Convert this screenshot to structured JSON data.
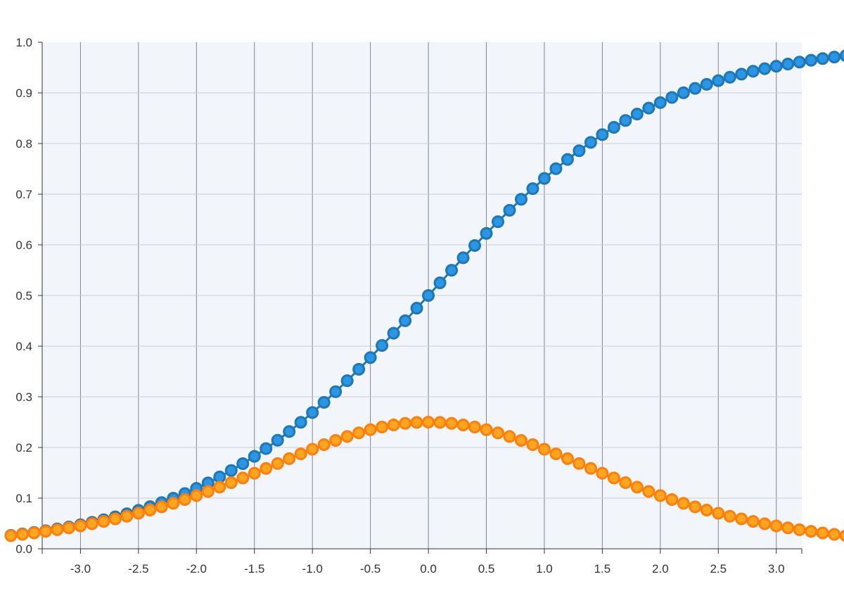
{
  "chart_data": {
    "type": "line",
    "title": "",
    "xlabel": "",
    "ylabel": "",
    "xlim": [
      -3.33,
      3.22
    ],
    "ylim": [
      0.0,
      1.0
    ],
    "x_ticks": [
      "-3.0",
      "-2.5",
      "-2.0",
      "-1.5",
      "-1.0",
      "-0.5",
      "0.0",
      "0.5",
      "1.0",
      "1.5",
      "2.0",
      "2.5",
      "3.0"
    ],
    "x_tick_values": [
      -3.0,
      -2.5,
      -2.0,
      -1.5,
      -1.0,
      -0.5,
      0.0,
      0.5,
      1.0,
      1.5,
      2.0,
      2.5,
      3.0
    ],
    "y_ticks": [
      "0.0",
      "0.1",
      "0.2",
      "0.3",
      "0.4",
      "0.5",
      "0.6",
      "0.7",
      "0.8",
      "0.9",
      "1.0"
    ],
    "y_tick_values": [
      0.0,
      0.1,
      0.2,
      0.3,
      0.4,
      0.5,
      0.6,
      0.7,
      0.8,
      0.9,
      1.0
    ],
    "grid": true,
    "x_start": -3.6,
    "x_step": 0.1,
    "series": [
      {
        "color": "#1f77b4",
        "fill": "#2b95e6",
        "values": [
          0.0266,
          0.0293,
          0.0323,
          0.0356,
          0.0392,
          0.0431,
          0.0474,
          0.0522,
          0.0573,
          0.063,
          0.0691,
          0.0759,
          0.0832,
          0.0911,
          0.0998,
          0.1091,
          0.1192,
          0.1301,
          0.1419,
          0.1545,
          0.168,
          0.1824,
          0.1978,
          0.2142,
          0.2315,
          0.2497,
          0.2689,
          0.2891,
          0.31,
          0.3318,
          0.3543,
          0.3775,
          0.4013,
          0.4256,
          0.4502,
          0.475,
          0.5,
          0.525,
          0.5498,
          0.5744,
          0.5987,
          0.6225,
          0.6457,
          0.6682,
          0.69,
          0.7109,
          0.7311,
          0.7503,
          0.7685,
          0.7858,
          0.8022,
          0.8176,
          0.832,
          0.8455,
          0.8581,
          0.8699,
          0.8808,
          0.8909,
          0.9002,
          0.9089,
          0.9168,
          0.9241,
          0.9309,
          0.937,
          0.9427,
          0.9478,
          0.9526,
          0.9569,
          0.9608,
          0.9644,
          0.9677,
          0.9707,
          0.9734
        ]
      },
      {
        "color": "#ff7f0e",
        "fill": "#ffa51f",
        "values": [
          0.0259,
          0.0284,
          0.0313,
          0.0343,
          0.0377,
          0.0413,
          0.0452,
          0.0494,
          0.054,
          0.059,
          0.0643,
          0.0701,
          0.0763,
          0.0828,
          0.0898,
          0.0972,
          0.105,
          0.1132,
          0.1217,
          0.1306,
          0.1398,
          0.1491,
          0.1587,
          0.1683,
          0.1779,
          0.1874,
          0.1966,
          0.2055,
          0.2139,
          0.2217,
          0.2288,
          0.235,
          0.2403,
          0.2445,
          0.2475,
          0.2494,
          0.25,
          0.2494,
          0.2475,
          0.2445,
          0.2403,
          0.235,
          0.2288,
          0.2217,
          0.2139,
          0.2055,
          0.1966,
          0.1874,
          0.1779,
          0.1683,
          0.1587,
          0.1491,
          0.1398,
          0.1306,
          0.1217,
          0.1132,
          0.105,
          0.0972,
          0.0898,
          0.0828,
          0.0763,
          0.0701,
          0.0643,
          0.059,
          0.054,
          0.0494,
          0.0452,
          0.0413,
          0.0377,
          0.0343,
          0.0313,
          0.0284,
          0.0259
        ]
      }
    ]
  }
}
